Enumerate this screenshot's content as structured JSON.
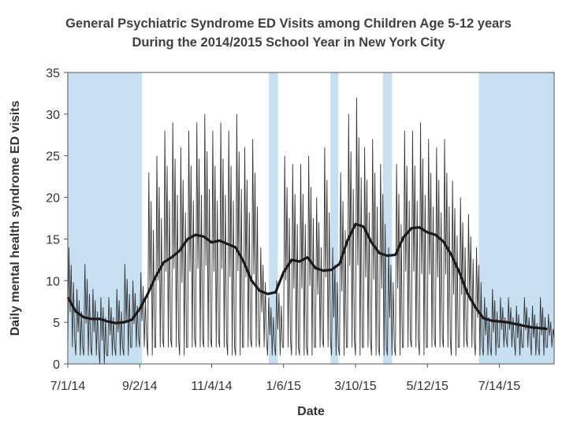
{
  "chart_data": {
    "type": "line",
    "title": "General Psychiatric Syndrome ED Visits among Children Age 5-12 years",
    "subtitle": "During the 2014/2015 School Year in New York City",
    "xlabel": "Date",
    "ylabel": "Daily mental health syndrome ED visits",
    "xlim": [
      "2014-07-01",
      "2015-08-31"
    ],
    "ylim": [
      0,
      35
    ],
    "yticks": [
      0,
      5,
      10,
      15,
      20,
      25,
      30,
      35
    ],
    "xticks": [
      "2014-07-01",
      "2014-09-02",
      "2014-11-04",
      "2015-01-06",
      "2015-03-10",
      "2015-05-12",
      "2015-07-14"
    ],
    "xtick_labels": [
      "7/1/14",
      "9/2/14",
      "11/4/14",
      "1/6/15",
      "3/10/15",
      "5/12/15",
      "7/14/15"
    ],
    "shaded_periods": [
      [
        "2014-07-01",
        "2014-09-04"
      ],
      [
        "2014-12-24",
        "2015-01-01"
      ],
      [
        "2015-02-16",
        "2015-02-23"
      ],
      [
        "2015-04-03",
        "2015-04-11"
      ],
      [
        "2015-06-26",
        "2015-08-31"
      ]
    ],
    "shade_color": "#c6e0f2",
    "series": [
      {
        "role": "daily",
        "color": "#333333",
        "x": [
          "2014-07-01",
          "2014-07-08",
          "2014-07-15",
          "2014-07-22",
          "2014-07-29",
          "2014-08-05",
          "2014-08-12",
          "2014-08-19",
          "2014-08-26",
          "2014-09-02",
          "2014-09-09",
          "2014-09-16",
          "2014-09-23",
          "2014-09-30",
          "2014-10-07",
          "2014-10-14",
          "2014-10-21",
          "2014-10-28",
          "2014-11-04",
          "2014-11-11",
          "2014-11-18",
          "2014-11-25",
          "2014-12-02",
          "2014-12-09",
          "2014-12-16",
          "2014-12-23",
          "2014-12-30",
          "2015-01-06",
          "2015-01-13",
          "2015-01-20",
          "2015-01-27",
          "2015-02-03",
          "2015-02-10",
          "2015-02-17",
          "2015-02-24",
          "2015-03-03",
          "2015-03-10",
          "2015-03-17",
          "2015-03-24",
          "2015-03-31",
          "2015-04-07",
          "2015-04-14",
          "2015-04-21",
          "2015-04-28",
          "2015-05-05",
          "2015-05-12",
          "2015-05-19",
          "2015-05-26",
          "2015-06-02",
          "2015-06-09",
          "2015-06-16",
          "2015-06-23",
          "2015-06-30",
          "2015-07-07",
          "2015-07-14",
          "2015-07-21",
          "2015-07-28",
          "2015-08-04",
          "2015-08-11",
          "2015-08-18",
          "2015-08-25"
        ],
        "low": [
          2,
          1,
          1,
          1,
          0,
          1,
          1,
          1,
          2,
          2,
          1,
          2,
          2,
          2,
          1,
          2,
          2,
          2,
          2,
          2,
          1,
          1,
          2,
          2,
          2,
          1,
          1,
          2,
          1,
          1,
          1,
          2,
          2,
          1,
          1,
          2,
          1,
          2,
          1,
          1,
          1,
          1,
          2,
          2,
          1,
          2,
          2,
          2,
          1,
          2,
          2,
          1,
          1,
          1,
          2,
          2,
          1,
          2,
          1,
          1,
          2
        ],
        "high": [
          14,
          9,
          12,
          9,
          8,
          8,
          9,
          12,
          10,
          11,
          23,
          25,
          28,
          29,
          26,
          28,
          29,
          30,
          28,
          29,
          28,
          30,
          26,
          27,
          14,
          8,
          10,
          25,
          24,
          24,
          25,
          20,
          26,
          14,
          23,
          30,
          32,
          26,
          27,
          24,
          14,
          24,
          28,
          28,
          29,
          27,
          26,
          27,
          22,
          20,
          18,
          14,
          8,
          9,
          8,
          8,
          7,
          8,
          7,
          8,
          6
        ]
      },
      {
        "role": "smoothed",
        "color": "#1a1a1a",
        "x": [
          "2014-07-01",
          "2014-07-08",
          "2014-07-15",
          "2014-07-22",
          "2014-07-29",
          "2014-08-05",
          "2014-08-12",
          "2014-08-19",
          "2014-08-26",
          "2014-09-02",
          "2014-09-09",
          "2014-09-16",
          "2014-09-23",
          "2014-09-30",
          "2014-10-07",
          "2014-10-14",
          "2014-10-21",
          "2014-10-28",
          "2014-11-04",
          "2014-11-11",
          "2014-11-18",
          "2014-11-25",
          "2014-12-02",
          "2014-12-09",
          "2014-12-16",
          "2014-12-23",
          "2014-12-30",
          "2015-01-06",
          "2015-01-13",
          "2015-01-20",
          "2015-01-27",
          "2015-02-03",
          "2015-02-10",
          "2015-02-17",
          "2015-02-24",
          "2015-03-03",
          "2015-03-10",
          "2015-03-17",
          "2015-03-24",
          "2015-03-31",
          "2015-04-07",
          "2015-04-14",
          "2015-04-21",
          "2015-04-28",
          "2015-05-05",
          "2015-05-12",
          "2015-05-19",
          "2015-05-26",
          "2015-06-02",
          "2015-06-09",
          "2015-06-16",
          "2015-06-23",
          "2015-06-30",
          "2015-07-07",
          "2015-07-14",
          "2015-07-21",
          "2015-07-28",
          "2015-08-04",
          "2015-08-11",
          "2015-08-18",
          "2015-08-25"
        ],
        "y": [
          8,
          6.3,
          5.6,
          5.4,
          5.4,
          5.1,
          4.9,
          5.0,
          5.3,
          6.6,
          8.4,
          10.5,
          12.2,
          12.8,
          13.6,
          15.0,
          15.5,
          15.3,
          14.6,
          14.8,
          14.4,
          14.0,
          12.3,
          10.0,
          8.8,
          8.4,
          8.6,
          11.0,
          12.5,
          12.3,
          12.8,
          11.5,
          11.2,
          11.3,
          12.0,
          14.8,
          16.8,
          16.5,
          14.6,
          13.3,
          13.0,
          13.1,
          15.2,
          16.3,
          16.4,
          15.8,
          15.5,
          14.7,
          13.1,
          11.0,
          8.5,
          6.8,
          5.5,
          5.2,
          5.1,
          5.0,
          4.8,
          4.6,
          4.4,
          4.3,
          4.2
        ]
      }
    ]
  }
}
